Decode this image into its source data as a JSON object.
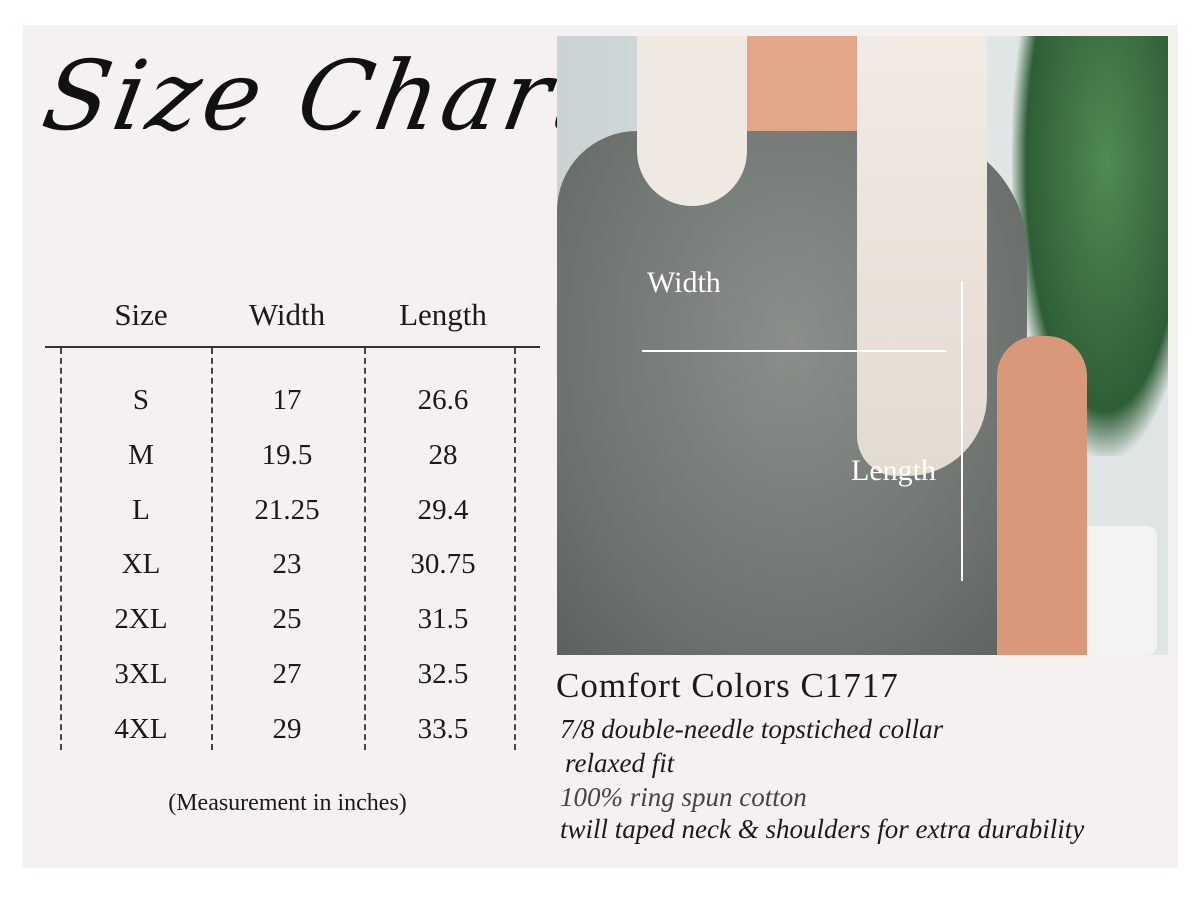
{
  "title": "Size Chart",
  "table": {
    "headers": [
      "Size",
      "Width",
      "Length"
    ],
    "rows": [
      [
        "S",
        "17",
        "26.6"
      ],
      [
        "M",
        "19.5",
        "28"
      ],
      [
        "L",
        "21.25",
        "29.4"
      ],
      [
        "XL",
        "23",
        "30.75"
      ],
      [
        "2XL",
        "25",
        "31.5"
      ],
      [
        "3XL",
        "27",
        "32.5"
      ],
      [
        "4XL",
        "29",
        "33.5"
      ]
    ]
  },
  "note": "(Measurement in inches)",
  "photo": {
    "width_label": "Width",
    "length_label": "Length"
  },
  "product": {
    "name": "Comfort Colors C1717",
    "features": [
      "7/8 double-needle topstiched collar",
      "relaxed fit",
      "100% ring spun cotton",
      "twill taped neck & shoulders for extra durability"
    ]
  }
}
